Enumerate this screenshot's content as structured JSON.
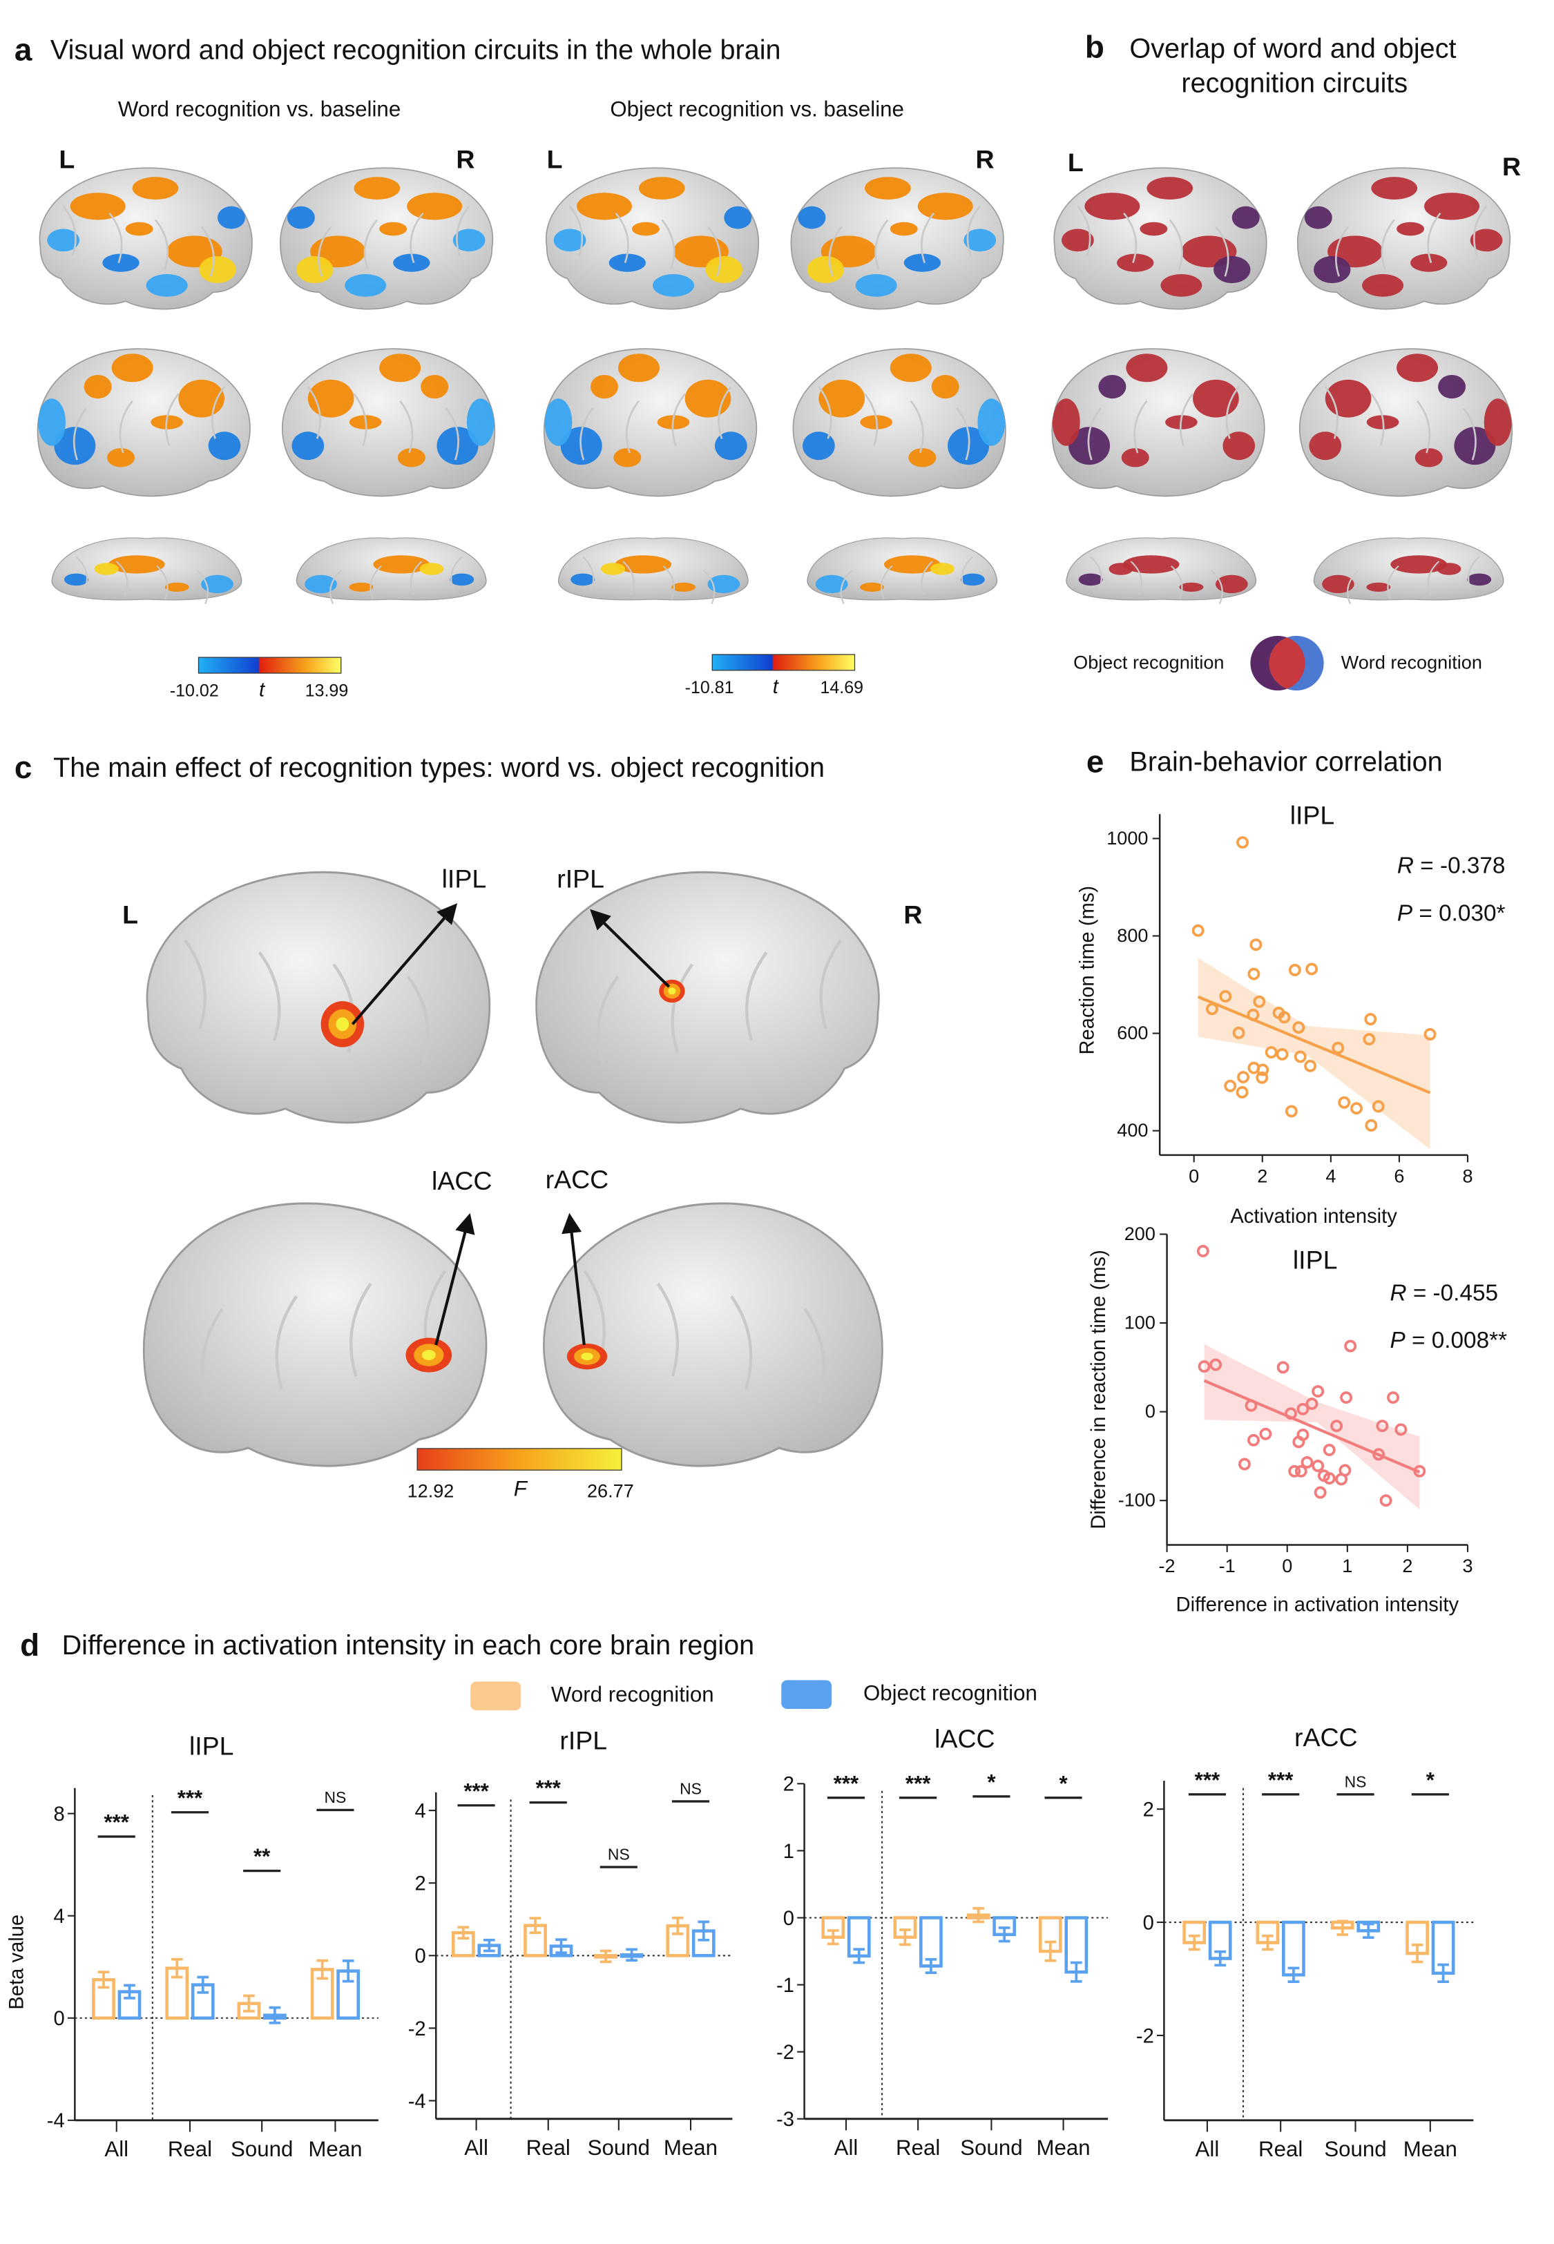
{
  "colors": {
    "brain_light": "#f4f4f4",
    "brain_dark": "#b4b4b4",
    "orange": "#f28a0a",
    "yellow": "#f7d21e",
    "blue": "#1f7fe0",
    "light_blue": "#39a6f2",
    "overlap_red": "#b8323a",
    "object_purple": "#5a2a66",
    "word_blue": "#4c79d1",
    "word_series": "#fcc98f",
    "word_series_stroke": "#f9b868",
    "object_series": "#5aa2f0",
    "scatter1": "#f7a04a",
    "scatter2": "#f27c7c",
    "f_low": "#e8401a",
    "f_mid": "#f7a21b",
    "f_high": "#f5f03a"
  },
  "panel_a": {
    "letter": "a",
    "title": "Visual word and object recognition circuits in the whole brain",
    "word_subtitle": "Word recognition vs. baseline",
    "object_subtitle": "Object recognition vs. baseline",
    "hemi_left": "L",
    "hemi_right": "R",
    "word_colorbar": {
      "min": "-10.02",
      "label": "t",
      "max": "13.99"
    },
    "object_colorbar": {
      "min": "-10.81",
      "label": "t",
      "max": "14.69"
    }
  },
  "panel_b": {
    "letter": "b",
    "title_line1": "Overlap of word and object",
    "title_line2": "recognition circuits",
    "hemi_left": "L",
    "hemi_right": "R",
    "legend_object": "Object recognition",
    "legend_word": "Word recognition"
  },
  "panel_c": {
    "letter": "c",
    "title": "The main effect of recognition types: word vs. object recognition",
    "hemi_left": "L",
    "hemi_right": "R",
    "regions": {
      "lipl": "lIPL",
      "ripl": "rIPL",
      "lacc": "lACC",
      "racc": "rACC"
    },
    "colorbar": {
      "min": "12.92",
      "label": "F",
      "max": "26.77"
    }
  },
  "panel_d": {
    "letter": "d",
    "title": "Difference in activation intensity in each core brain region",
    "legend_word": "Word recognition",
    "legend_object": "Object recognition",
    "ylabel": "Beta value"
  },
  "panel_e": {
    "letter": "e",
    "title": "Brain-behavior correlation"
  },
  "chart_data": [
    {
      "id": "e1",
      "type": "scatter",
      "title": "lIPL",
      "xlabel": "Activation intensity",
      "ylabel": "Reaction time (ms)",
      "xlim": [
        -1,
        8
      ],
      "ylim": [
        350,
        1050
      ],
      "xticks": [
        0,
        2,
        4,
        6,
        8
      ],
      "yticks": [
        400,
        600,
        800,
        1000
      ],
      "grid": false,
      "annotations": {
        "r_label": "R",
        "r_value": " = -0.378",
        "p_label": "P",
        "p_value": " = 0.030*"
      },
      "fit_line": [
        [
          0.12,
          675
        ],
        [
          6.9,
          478
        ]
      ],
      "ci_band": {
        "x": [
          0.12,
          3.3,
          6.9
        ],
        "upper": [
          755,
          615,
          596
        ],
        "lower": [
          593,
          555,
          362
        ]
      },
      "points": [
        [
          1.42,
          992
        ],
        [
          0.12,
          811
        ],
        [
          1.81,
          782
        ],
        [
          1.75,
          722
        ],
        [
          2.95,
          730
        ],
        [
          3.44,
          732
        ],
        [
          0.92,
          676
        ],
        [
          0.53,
          650
        ],
        [
          1.91,
          665
        ],
        [
          1.73,
          638
        ],
        [
          2.48,
          642
        ],
        [
          2.64,
          633
        ],
        [
          3.06,
          612
        ],
        [
          1.31,
          601
        ],
        [
          5.16,
          629
        ],
        [
          5.12,
          588
        ],
        [
          6.9,
          598
        ],
        [
          4.21,
          570
        ],
        [
          2.26,
          561
        ],
        [
          2.58,
          557
        ],
        [
          3.11,
          552
        ],
        [
          3.4,
          533
        ],
        [
          1.75,
          529
        ],
        [
          2.01,
          525
        ],
        [
          1.44,
          510
        ],
        [
          1.99,
          509
        ],
        [
          1.06,
          492
        ],
        [
          1.41,
          479
        ],
        [
          2.85,
          440
        ],
        [
          4.39,
          458
        ],
        [
          4.75,
          446
        ],
        [
          5.39,
          450
        ],
        [
          5.18,
          411
        ]
      ]
    },
    {
      "id": "e2",
      "type": "scatter",
      "title": "lIPL",
      "xlabel": "Difference in activation intensity",
      "ylabel": "Difference in reaction time (ms)",
      "xlim": [
        -2,
        3
      ],
      "ylim": [
        -150,
        200
      ],
      "xticks": [
        -2,
        -1,
        0,
        1,
        2,
        3
      ],
      "yticks": [
        -100,
        0,
        100,
        200
      ],
      "grid": false,
      "annotations": {
        "r_label": "R",
        "r_value": " = -0.455",
        "p_label": "P",
        "p_value": " = 0.008**"
      },
      "fit_line": [
        [
          -1.38,
          35
        ],
        [
          2.2,
          -68
        ]
      ],
      "ci_band": {
        "x": [
          -1.38,
          0.5,
          2.2
        ],
        "upper": [
          76,
          11,
          -28
        ],
        "lower": [
          -9,
          -12,
          -110
        ]
      },
      "points": [
        [
          -1.4,
          181
        ],
        [
          -1.38,
          51
        ],
        [
          -1.19,
          53
        ],
        [
          -0.07,
          50
        ],
        [
          1.05,
          74
        ],
        [
          0.51,
          23
        ],
        [
          0.41,
          9
        ],
        [
          0.26,
          3
        ],
        [
          0.06,
          -2
        ],
        [
          -0.6,
          7
        ],
        [
          0.98,
          16
        ],
        [
          1.76,
          16
        ],
        [
          0.82,
          -16
        ],
        [
          1.58,
          -16
        ],
        [
          1.89,
          -20
        ],
        [
          -0.36,
          -25
        ],
        [
          -0.56,
          -32
        ],
        [
          0.26,
          -26
        ],
        [
          0.19,
          -34
        ],
        [
          0.7,
          -43
        ],
        [
          1.52,
          -48
        ],
        [
          2.2,
          -67
        ],
        [
          -0.71,
          -59
        ],
        [
          0.33,
          -57
        ],
        [
          0.51,
          -61
        ],
        [
          0.12,
          -67
        ],
        [
          0.23,
          -67
        ],
        [
          0.61,
          -72
        ],
        [
          0.7,
          -75
        ],
        [
          0.96,
          -66
        ],
        [
          0.9,
          -76
        ],
        [
          0.55,
          -91
        ],
        [
          1.64,
          -100
        ]
      ]
    },
    {
      "id": "d1",
      "type": "bar",
      "title": "lIPL",
      "categories": [
        "All",
        "Real",
        "Sound",
        "Mean"
      ],
      "ylim": [
        -4,
        9
      ],
      "yticks": [
        -4,
        0,
        4,
        8
      ],
      "series": [
        {
          "name": "Word recognition",
          "values": [
            1.5,
            1.95,
            0.57,
            1.9
          ],
          "sem": [
            0.3,
            0.35,
            0.3,
            0.35
          ]
        },
        {
          "name": "Object recognition",
          "values": [
            1.03,
            1.3,
            0.11,
            1.84
          ],
          "sem": [
            0.25,
            0.3,
            0.3,
            0.4
          ]
        }
      ],
      "significance": [
        "***",
        "***",
        "**",
        "NS"
      ],
      "sig_height": [
        7.1,
        8.05,
        5.76,
        8.14
      ]
    },
    {
      "id": "d2",
      "type": "bar",
      "title": "rIPL",
      "categories": [
        "All",
        "Real",
        "Sound",
        "Mean"
      ],
      "ylim": [
        -4.5,
        4.5
      ],
      "yticks": [
        -4,
        -2,
        0,
        2,
        4
      ],
      "series": [
        {
          "name": "Word recognition",
          "values": [
            0.63,
            0.83,
            -0.02,
            0.82
          ],
          "sem": [
            0.15,
            0.2,
            0.15,
            0.22
          ]
        },
        {
          "name": "Object recognition",
          "values": [
            0.28,
            0.26,
            0.02,
            0.68
          ],
          "sem": [
            0.15,
            0.18,
            0.15,
            0.25
          ]
        }
      ],
      "significance": [
        "***",
        "***",
        "NS",
        "NS"
      ],
      "sig_height": [
        4.14,
        4.22,
        2.44,
        4.25
      ]
    },
    {
      "id": "d3",
      "type": "bar",
      "title": "lACC",
      "categories": [
        "All",
        "Real",
        "Sound",
        "Mean"
      ],
      "ylim": [
        -3,
        2
      ],
      "yticks": [
        -3,
        -2,
        -1,
        0,
        1,
        2
      ],
      "series": [
        {
          "name": "Word recognition",
          "values": [
            -0.29,
            -0.29,
            0.04,
            -0.5
          ],
          "sem": [
            0.1,
            0.11,
            0.1,
            0.14
          ]
        },
        {
          "name": "Object recognition",
          "values": [
            -0.57,
            -0.72,
            -0.25,
            -0.81
          ],
          "sem": [
            0.1,
            0.1,
            0.1,
            0.14
          ]
        }
      ],
      "significance": [
        "***",
        "***",
        "*",
        "*"
      ],
      "sig_height": [
        1.79,
        1.79,
        1.81,
        1.79
      ]
    },
    {
      "id": "d4",
      "type": "bar",
      "title": "rACC",
      "categories": [
        "All",
        "Real",
        "Sound",
        "Mean"
      ],
      "ylim": [
        -3.5,
        2.5
      ],
      "yticks": [
        -2,
        0,
        2
      ],
      "series": [
        {
          "name": "Word recognition",
          "values": [
            -0.36,
            -0.36,
            -0.1,
            -0.55
          ],
          "sem": [
            0.12,
            0.12,
            0.12,
            0.15
          ]
        },
        {
          "name": "Object recognition",
          "values": [
            -0.64,
            -0.93,
            -0.15,
            -0.9
          ],
          "sem": [
            0.12,
            0.12,
            0.12,
            0.15
          ]
        }
      ],
      "significance": [
        "***",
        "***",
        "NS",
        "*"
      ],
      "sig_height": [
        2.26,
        2.26,
        2.26,
        2.26
      ]
    }
  ]
}
